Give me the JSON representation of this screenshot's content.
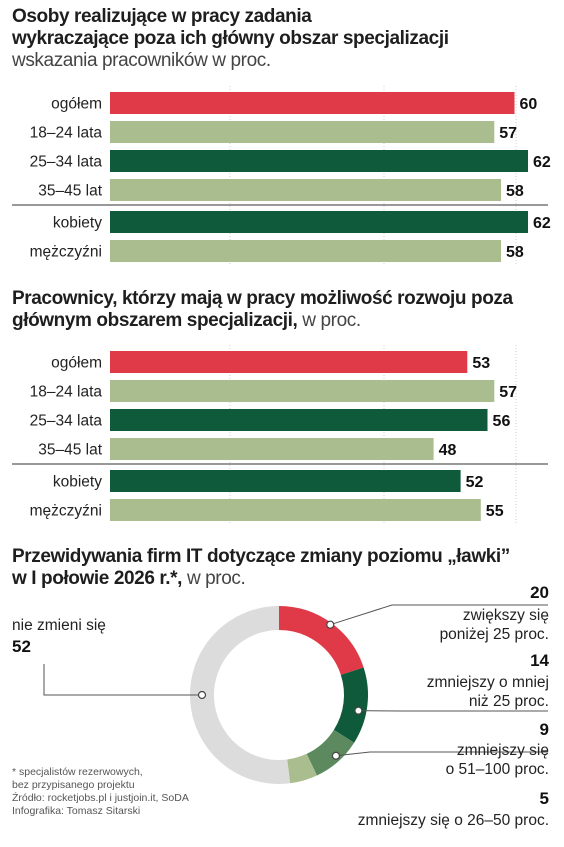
{
  "colors": {
    "red": "#e03a48",
    "dark_green": "#0e5a3a",
    "light_green": "#a9bd8f",
    "ring_gray": "#dcdcdc",
    "mid_green": "#5c8a5e"
  },
  "chart1": {
    "title_line1": "Osoby realizujące w pracy zadania",
    "title_line2": "wykraczające poza ich główny obszar specjalizacji",
    "subtitle": "wskazania pracowników w proc."
  },
  "chart2": {
    "title_line1": "Pracownicy, którzy mają w pracy możliwość rozwoju poza",
    "title_line2": "głównym obszarem specjalizacji,",
    "title_suffix": " w proc."
  },
  "chart3": {
    "title_line1": "Przewidywania firm IT dotyczące zmiany poziomu „ławki”",
    "title_line2": "w I połowie 2026 r.*,",
    "title_suffix": " w proc."
  },
  "footnotes": {
    "line1": "* specjalistów rezerwowych,",
    "line2": "bez przypisanego projektu",
    "line3": "Źródło: rocketjobs.pl i justjoin.it, SoDA",
    "line4": "Infografika: Tomasz Sitarski"
  },
  "chart_data": [
    {
      "type": "bar",
      "orientation": "horizontal",
      "title": "Osoby realizujące w pracy zadania wykraczające poza ich główny obszar specjalizacji",
      "subtitle": "wskazania pracowników w proc.",
      "categories": [
        "ogółem",
        "18–24 lata",
        "25–34 lata",
        "35–45 lat",
        "kobiety",
        "mężczyźni"
      ],
      "values": [
        60,
        57,
        62,
        58,
        62,
        58
      ],
      "colors": [
        "#e03a48",
        "#a9bd8f",
        "#0e5a3a",
        "#a9bd8f",
        "#0e5a3a",
        "#a9bd8f"
      ],
      "divider_after_index": 3,
      "xlim": [
        0,
        62
      ]
    },
    {
      "type": "bar",
      "orientation": "horizontal",
      "title": "Pracownicy, którzy mają w pracy możliwość rozwoju poza głównym obszarem specjalizacji, w proc.",
      "categories": [
        "ogółem",
        "18–24 lata",
        "25–34 lata",
        "35–45 lat",
        "kobiety",
        "mężczyźni"
      ],
      "values": [
        53,
        57,
        56,
        48,
        52,
        55
      ],
      "colors": [
        "#e03a48",
        "#a9bd8f",
        "#0e5a3a",
        "#a9bd8f",
        "#0e5a3a",
        "#a9bd8f"
      ],
      "divider_after_index": 3,
      "xlim": [
        0,
        62
      ]
    },
    {
      "type": "pie",
      "variant": "donut",
      "title": "Przewidywania firm IT dotyczące zmiany poziomu „ławki” w I połowie 2026 r.*, w proc.",
      "slices": [
        {
          "label": "zwiększy się poniżej 25 proc.",
          "label_line1": "zwiększy się",
          "label_line2": "poniżej 25 proc.",
          "value": 20,
          "color": "#e03a48"
        },
        {
          "label": "zmniejszy o mniej niż 25 proc.",
          "label_line1": "zmniejszy o mniej",
          "label_line2": "niż 25 proc.",
          "value": 14,
          "color": "#0e5a3a"
        },
        {
          "label": "zmniejszy się o 51–100 proc.",
          "label_line1": "zmniejszy się",
          "label_line2": "o 51–100 proc.",
          "value": 9,
          "color": "#5c8a5e"
        },
        {
          "label": "zmniejszy się o 26–50 proc.",
          "label_line1": "zmniejszy się o 26–50 proc.",
          "label_line2": "",
          "value": 5,
          "color": "#a9bd8f"
        },
        {
          "label": "nie zmieni się",
          "label_line1": "nie zmieni się",
          "label_line2": "",
          "value": 52,
          "color": "#dcdcdc"
        }
      ]
    }
  ]
}
